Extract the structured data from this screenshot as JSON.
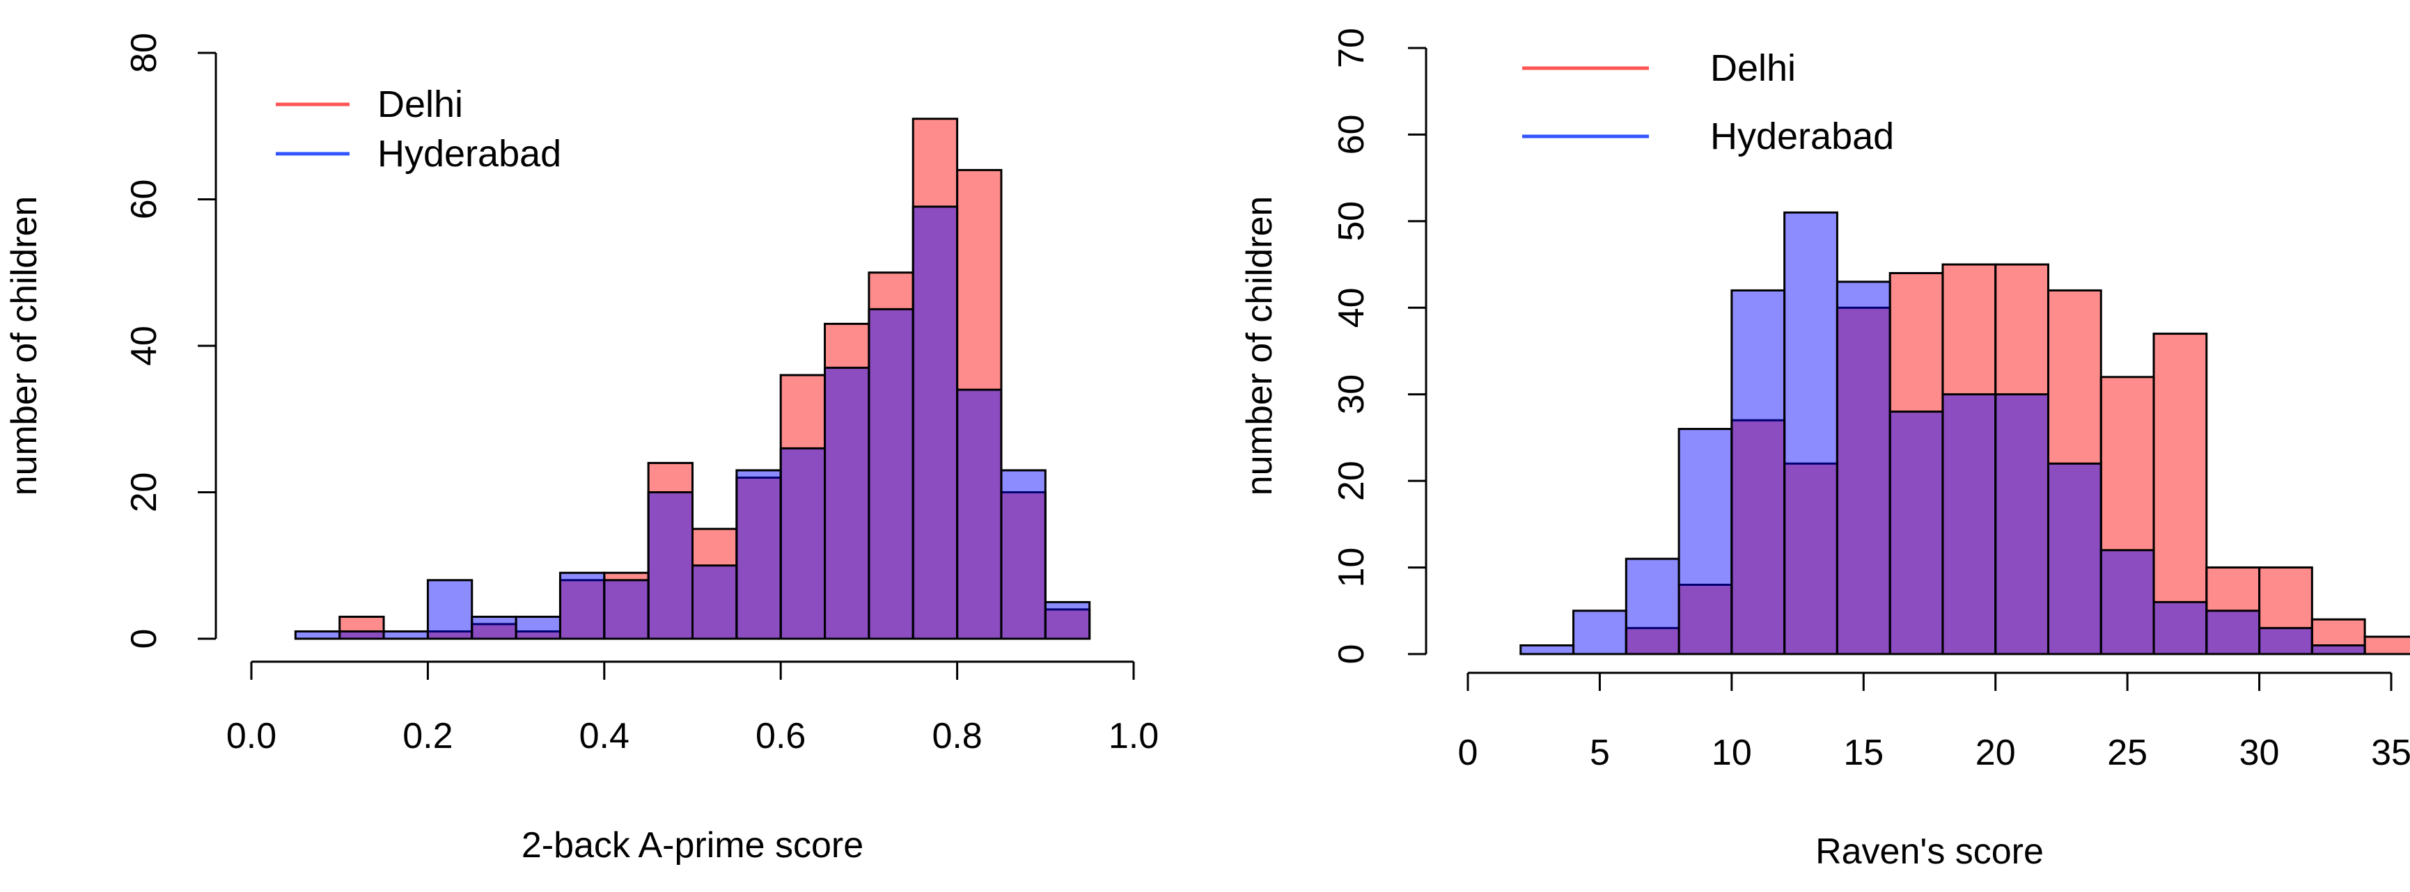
{
  "colors": {
    "delhi_fill": "rgba(255, 0, 0, 0.45)",
    "hyderabad_fill": "rgba(0, 0, 255, 0.45)",
    "delhi_line": "#ff5555",
    "hyderabad_line": "#3355ff"
  },
  "chart_data": [
    {
      "type": "bar",
      "title": "",
      "xlabel": "2-back A-prime score",
      "ylabel": "number of children",
      "xlim": [
        0.0,
        1.0
      ],
      "ylim": [
        0,
        80
      ],
      "x_ticks": [
        0.0,
        0.2,
        0.4,
        0.6,
        0.8,
        1.0
      ],
      "x_tick_labels": [
        "0.0",
        "0.2",
        "0.4",
        "0.6",
        "0.8",
        "1.0"
      ],
      "y_ticks": [
        0,
        20,
        40,
        60,
        80
      ],
      "y_tick_labels": [
        "0",
        "20",
        "40",
        "60",
        "80"
      ],
      "legend": {
        "placement": "top-left",
        "entries": [
          "Delhi",
          "Hyderabad"
        ]
      },
      "bin_edges": [
        0.05,
        0.1,
        0.15,
        0.2,
        0.25,
        0.3,
        0.35,
        0.4,
        0.45,
        0.5,
        0.55,
        0.6,
        0.65,
        0.7,
        0.75,
        0.8,
        0.85,
        0.9,
        0.95
      ],
      "series": [
        {
          "name": "Delhi",
          "values": [
            0,
            3,
            0,
            1,
            2,
            1,
            8,
            9,
            24,
            15,
            22,
            36,
            43,
            50,
            71,
            64,
            20,
            4
          ]
        },
        {
          "name": "Hyderabad",
          "values": [
            1,
            1,
            1,
            8,
            3,
            3,
            9,
            8,
            20,
            10,
            23,
            26,
            37,
            45,
            59,
            34,
            23,
            5
          ]
        }
      ]
    },
    {
      "type": "bar",
      "title": "",
      "xlabel": "Raven's score",
      "ylabel": "number of children",
      "xlim": [
        0,
        35
      ],
      "ylim": [
        0,
        70
      ],
      "x_ticks": [
        0,
        5,
        10,
        15,
        20,
        25,
        30,
        35
      ],
      "x_tick_labels": [
        "0",
        "5",
        "10",
        "15",
        "20",
        "25",
        "30",
        "35"
      ],
      "y_ticks": [
        0,
        10,
        20,
        30,
        40,
        50,
        60,
        70
      ],
      "y_tick_labels": [
        "0",
        "10",
        "20",
        "30",
        "40",
        "50",
        "60",
        "70"
      ],
      "legend": {
        "placement": "top-left",
        "entries": [
          "Delhi",
          "Hyderabad"
        ]
      },
      "bin_edges": [
        2,
        4,
        6,
        8,
        10,
        12,
        14,
        16,
        18,
        20,
        22,
        24,
        26,
        28,
        30,
        32,
        34,
        36
      ],
      "series": [
        {
          "name": "Delhi",
          "values": [
            0,
            0,
            3,
            8,
            27,
            22,
            40,
            44,
            45,
            45,
            42,
            32,
            37,
            10,
            10,
            4,
            2
          ]
        },
        {
          "name": "Hyderabad",
          "values": [
            1,
            5,
            11,
            26,
            42,
            51,
            43,
            28,
            30,
            30,
            22,
            12,
            6,
            5,
            3,
            1,
            0
          ]
        }
      ]
    }
  ]
}
